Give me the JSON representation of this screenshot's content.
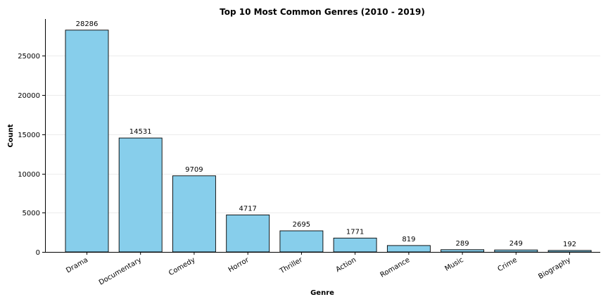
{
  "chart_data": {
    "type": "bar",
    "title": "Top 10 Most Common Genres (2010 - 2019)",
    "xlabel": "Genre",
    "ylabel": "Count",
    "categories": [
      "Drama",
      "Documentary",
      "Comedy",
      "Horror",
      "Thriller",
      "Action",
      "Romance",
      "Music",
      "Crime",
      "Biography"
    ],
    "values": [
      28286,
      14531,
      9709,
      4717,
      2695,
      1771,
      819,
      289,
      249,
      192
    ],
    "ylim": [
      0,
      29700
    ],
    "yticks": [
      0,
      5000,
      10000,
      15000,
      20000,
      25000
    ],
    "grid": "horizontal",
    "legend": "none",
    "colors": {
      "bar_fill": "#87ceeb",
      "bar_edge": "#000000",
      "grid": "#e6e6e6",
      "axis": "#000000"
    }
  }
}
